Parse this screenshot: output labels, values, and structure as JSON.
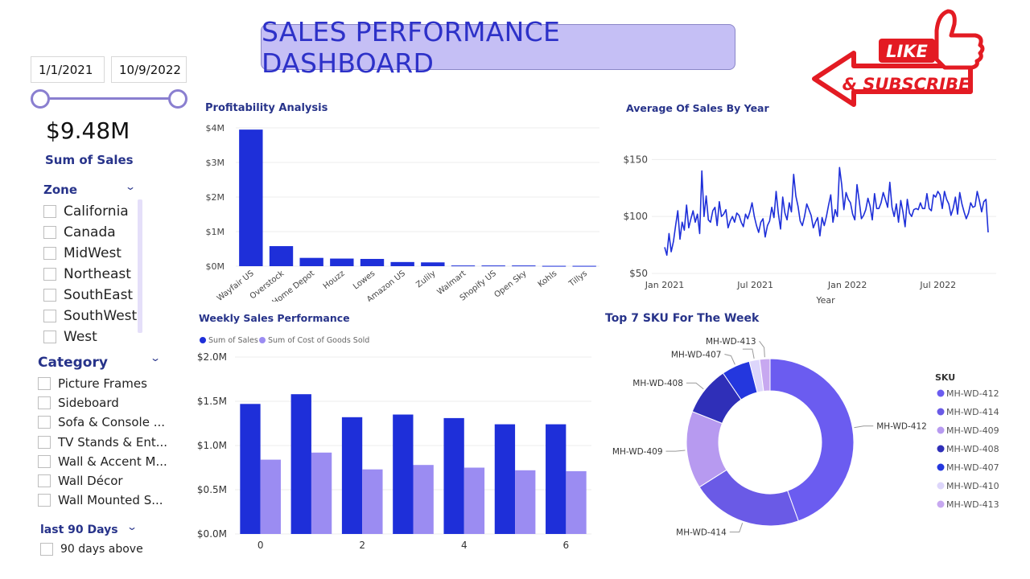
{
  "header": {
    "title": "SALES PERFORMANCE DASHBOARD"
  },
  "date_filter": {
    "start": "1/1/2021",
    "end": "10/9/2022"
  },
  "kpi": {
    "value": "$9.48M",
    "label": "Sum of Sales"
  },
  "zone_slicer": {
    "title": "Zone",
    "items": [
      "California",
      "Canada",
      "MidWest",
      "Northeast",
      "SouthEast",
      "SouthWest",
      "West"
    ]
  },
  "category_slicer": {
    "title": "Category",
    "items": [
      "Picture Frames",
      "Sideboard",
      "Sofa & Console ...",
      "TV Stands & Ent...",
      "Wall & Accent M...",
      "Wall Décor",
      "Wall Mounted S..."
    ]
  },
  "days_slicer": {
    "title": "last 90 Days",
    "items": [
      "90 days above"
    ]
  },
  "badge": {
    "like": "LIKE",
    "subscribe": "& SUBSCRIBE",
    "colors": {
      "red": "#e31b23",
      "white": "#ffffff"
    }
  },
  "colors": {
    "primary": "#1e2fd9",
    "secondary": "#9b8cf2",
    "title_text": "#27338a",
    "title_bg": "#c5bff5"
  },
  "chart_data": [
    {
      "id": "profitability",
      "type": "bar",
      "title": "Profitability Analysis",
      "categories": [
        "Wayfair US",
        "Overstock",
        "Home Depot",
        "Houzz",
        "Lowes",
        "Amazon US",
        "Zulily",
        "Walmart",
        "Shopify US",
        "Open Sky",
        "Kohls",
        "Tillys"
      ],
      "values": [
        3.95,
        0.58,
        0.24,
        0.22,
        0.21,
        0.12,
        0.11,
        0.02,
        0.02,
        0.02,
        0.01,
        0.01
      ],
      "yticks": [
        "$0M",
        "$1M",
        "$2M",
        "$3M",
        "$4M"
      ],
      "ylim": [
        0,
        4
      ],
      "unit": "M"
    },
    {
      "id": "avg_sales_year",
      "type": "line",
      "title": "Average Of Sales By Year",
      "xlabel": "Year",
      "xticks": [
        "Jan 2021",
        "Jul 2021",
        "Jan 2022",
        "Jul 2022"
      ],
      "yticks": [
        "$50",
        "$100",
        "$150"
      ],
      "ylim": [
        50,
        170
      ],
      "x_range": [
        "2021-01-01",
        "2022-10-09"
      ],
      "values": [
        73,
        66,
        85,
        69,
        78,
        92,
        105,
        80,
        95,
        88,
        110,
        90,
        98,
        105,
        95,
        102,
        85,
        140,
        100,
        118,
        97,
        95,
        105,
        108,
        92,
        113,
        100,
        102,
        106,
        90,
        96,
        100,
        95,
        103,
        101,
        95,
        91,
        102,
        98,
        104,
        112,
        100,
        92,
        86,
        95,
        98,
        82,
        92,
        96,
        108,
        99,
        122,
        103,
        89,
        117,
        103,
        97,
        112,
        104,
        137,
        118,
        109,
        96,
        92,
        100,
        111,
        106,
        101,
        90,
        95,
        99,
        83,
        99,
        92,
        100,
        110,
        119,
        95,
        106,
        100,
        143,
        128,
        106,
        121,
        115,
        112,
        102,
        97,
        128,
        114,
        98,
        101,
        106,
        116,
        109,
        97,
        120,
        107,
        107,
        112,
        121,
        115,
        108,
        130,
        108,
        100,
        111,
        95,
        114,
        104,
        91,
        115,
        103,
        100,
        106,
        107,
        106,
        112,
        107,
        107,
        120,
        107,
        105,
        119,
        117,
        122,
        119,
        107,
        122,
        115,
        111,
        101,
        107,
        117,
        102,
        121,
        111,
        104,
        98,
        103,
        112,
        108,
        109,
        122,
        114,
        104,
        113,
        115,
        86
      ]
    },
    {
      "id": "weekly_sales",
      "type": "bar",
      "title": "Weekly Sales Performance",
      "categories": [
        "0",
        "1",
        "2",
        "3",
        "4",
        "5",
        "6"
      ],
      "xticks": [
        "0",
        "2",
        "4",
        "6"
      ],
      "series": [
        {
          "name": "Sum of Sales",
          "values": [
            1.47,
            1.58,
            1.32,
            1.35,
            1.31,
            1.24,
            1.24
          ]
        },
        {
          "name": "Sum of Cost of Goods Sold",
          "values": [
            0.84,
            0.92,
            0.73,
            0.78,
            0.75,
            0.72,
            0.71
          ]
        }
      ],
      "yticks": [
        "$0.0M",
        "$0.5M",
        "$1.0M",
        "$1.5M",
        "$2.0M"
      ],
      "ylim": [
        0,
        2
      ]
    },
    {
      "id": "top_sku",
      "type": "pie",
      "title": "Top 7 SKU For The Week",
      "legend_title": "SKU",
      "slices": [
        {
          "label": "MH-WD-412",
          "value": 44.5,
          "color": "#6b5cf0"
        },
        {
          "label": "MH-WD-414",
          "value": 21.5,
          "color": "#6a5ae6"
        },
        {
          "label": "MH-WD-409",
          "value": 15.0,
          "color": "#b79af0"
        },
        {
          "label": "MH-WD-408",
          "value": 9.5,
          "color": "#2f2fb8"
        },
        {
          "label": "MH-WD-407",
          "value": 5.5,
          "color": "#2437de"
        },
        {
          "label": "MH-WD-410",
          "value": 2.0,
          "color": "#ddd6fb"
        },
        {
          "label": "MH-WD-413",
          "value": 2.0,
          "color": "#c7a8f0"
        }
      ]
    }
  ]
}
